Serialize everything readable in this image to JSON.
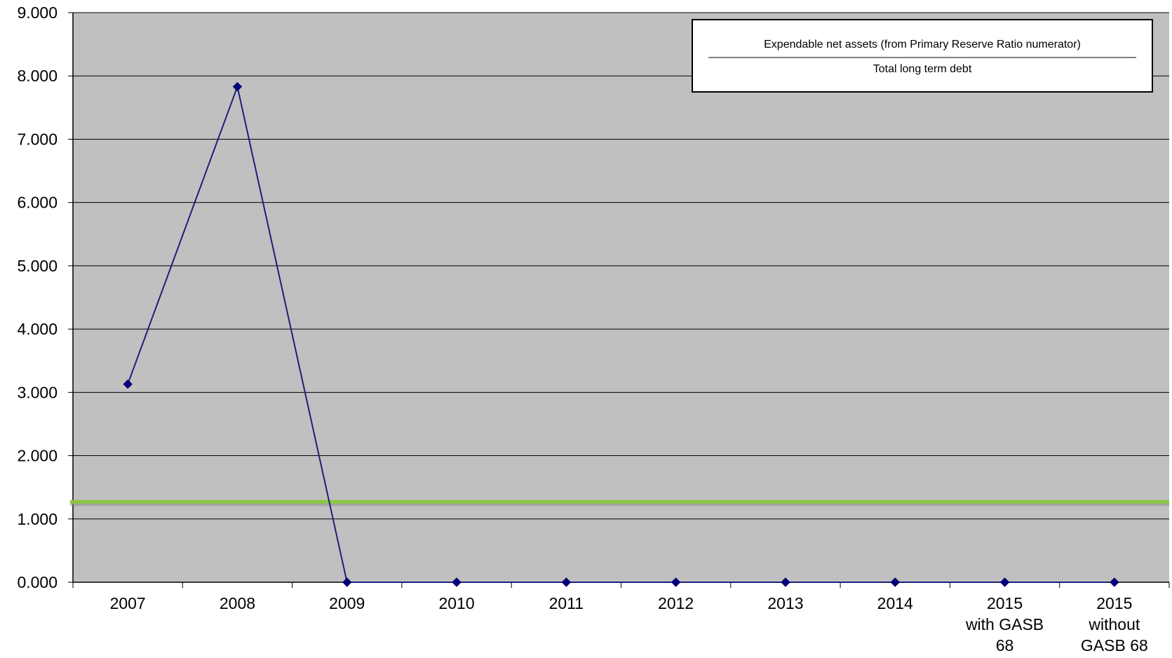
{
  "chart_data": {
    "type": "line",
    "categories": [
      [
        "2007"
      ],
      [
        "2008"
      ],
      [
        "2009"
      ],
      [
        "2010"
      ],
      [
        "2011"
      ],
      [
        "2012"
      ],
      [
        "2013"
      ],
      [
        "2014"
      ],
      [
        "2015",
        "with GASB",
        "68"
      ],
      [
        "2015",
        "without",
        "GASB 68"
      ]
    ],
    "series": [
      {
        "values": [
          3.13,
          7.83,
          0.0,
          0.0,
          0.0,
          0.0,
          0.0,
          0.0,
          0.0,
          0.0
        ],
        "color": "#1f1f7a"
      }
    ],
    "reference_line": {
      "value": 1.27,
      "color": "#8cc63f"
    },
    "ylim": [
      0,
      9
    ],
    "yticks": [
      "0.000",
      "1.000",
      "2.000",
      "3.000",
      "4.000",
      "5.000",
      "6.000",
      "7.000",
      "8.000",
      "9.000"
    ],
    "grid": true,
    "plot_background": "#c0c0c0",
    "annotation": {
      "numerator": "Expendable net assets (from Primary Reserve Ratio numerator)",
      "denominator": "Total long term debt"
    }
  }
}
